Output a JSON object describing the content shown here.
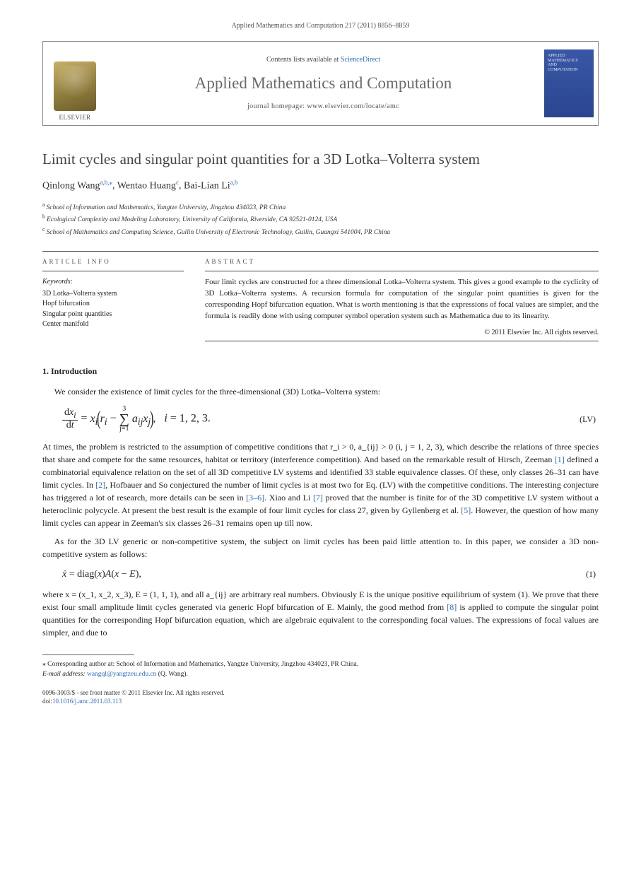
{
  "header_ref": "Applied Mathematics and Computation 217 (2011) 8856–8859",
  "masthead": {
    "contents_prefix": "Contents lists available at ",
    "contents_link": "ScienceDirect",
    "journal_title": "Applied Mathematics and Computation",
    "homepage_label": "journal homepage: www.elsevier.com/locate/amc",
    "publisher_label": "ELSEVIER",
    "cover_line1": "APPLIED",
    "cover_line2": "MATHEMATICS",
    "cover_line3": "AND",
    "cover_line4": "COMPUTATION"
  },
  "title": "Limit cycles and singular point quantities for a 3D Lotka–Volterra system",
  "authors": {
    "a1_name": "Qinlong Wang",
    "a1_sup": "a,b,",
    "a1_star": "⁎",
    "a2_name": ", Wentao Huang",
    "a2_sup": "c",
    "a3_name": ", Bai-Lian Li",
    "a3_sup": "a,b"
  },
  "affiliations": {
    "a": "School of Information and Mathematics, Yangtze University, Jingzhou 434023, PR China",
    "b": "Ecological Complexity and Modeling Laboratory, University of California, Riverside, CA 92521-0124, USA",
    "c": "School of Mathematics and Computing Science, Guilin University of Electronic Technology, Guilin, Guangxi 541004, PR China"
  },
  "article_info_head": "ARTICLE INFO",
  "abstract_head": "ABSTRACT",
  "keywords_label": "Keywords:",
  "keywords": [
    "3D Lotka–Volterra system",
    "Hopf bifurcation",
    "Singular point quantities",
    "Center manifold"
  ],
  "abstract_text": "Four limit cycles are constructed for a three dimensional Lotka–Volterra system. This gives a good example to the cyclicity of 3D Lotka–Volterra systems. A recursion formula for computation of the singular point quantities is given for the corresponding Hopf bifurcation equation. What is worth mentioning is that the expressions of focal values are simpler, and the formula is readily done with using computer symbol operation system such as Mathematica due to its linearity.",
  "copyright": "© 2011 Elsevier Inc. All rights reserved.",
  "section1_heading": "1. Introduction",
  "intro_p1": "We consider the existence of limit cycles for the three-dimensional (3D) Lotka–Volterra system:",
  "eqLV": {
    "lhs_num": "dx_i",
    "lhs_den": "dt",
    "eq": " = x_i",
    "inside_pre": "r_i − ",
    "sum_top": "3",
    "sum_bot": "j=1",
    "inside_post": " a_{ij} x_j",
    "tail": ",   i = 1, 2, 3.",
    "tag": "(LV)"
  },
  "intro_p2_a": "At times, the problem is restricted to the assumption of competitive conditions that r_i > 0, a_{ij} > 0 (i, j = 1, 2, 3), which describe the relations of three species that share and compete for the same resources, habitat or territory (interference competition). And based on the remarkable result of Hirsch, Zeeman ",
  "ref1": "[1]",
  "intro_p2_b": " defined a combinatorial equivalence relation on the set of all 3D competitive LV systems and identified 33 stable equivalence classes. Of these, only classes 26–31 can have limit cycles. In ",
  "ref2": "[2]",
  "intro_p2_c": ", Hofbauer and So conjectured the number of limit cycles is at most two for Eq. (LV) with the competitive conditions. The interesting conjecture has triggered a lot of research, more details can be seen in ",
  "ref36": "[3–6]",
  "intro_p2_d": ". Xiao and Li ",
  "ref7": "[7]",
  "intro_p2_e": " proved that the number is finite for of the 3D competitive LV system without a heteroclinic polycycle. At present the best result is the example of four limit cycles for class 27, given by Gyllenberg et al. ",
  "ref5": "[5]",
  "intro_p2_f": ". However, the question of how many limit cycles can appear in Zeeman's six classes 26–31 remains open up till now.",
  "intro_p3": "As for the 3D LV generic or non-competitive system, the subject on limit cycles has been paid little attention to. In this paper, we consider a 3D non-competitive system as follows:",
  "eq1": {
    "body": "ẋ = diag(x)A(x − E),",
    "tag": "(1)"
  },
  "intro_p4_a": "where x = (x_1, x_2, x_3), E = (1, 1, 1), and all a_{ij} are arbitrary real numbers. Obviously E is the unique positive equilibrium of system (1). We prove that there exist four small amplitude limit cycles generated via generic Hopf bifurcation of E. Mainly, the good method from ",
  "ref8": "[8]",
  "intro_p4_b": " is applied to compute the singular point quantities for the corresponding Hopf bifurcation equation, which are algebraic equivalent to the corresponding focal values. The expressions of focal values are simpler, and due to",
  "footnote": {
    "corr": "Corresponding author at: School of Information and Mathematics, Yangtze University, Jingzhou 434023, PR China.",
    "email_label": "E-mail address: ",
    "email": "wangql@yangtzeu.edu.cn",
    "email_tail": " (Q. Wang)."
  },
  "doi": {
    "line1": "0096-3003/$ - see front matter © 2011 Elsevier Inc. All rights reserved.",
    "line2_pre": "doi:",
    "line2_link": "10.1016/j.amc.2011.03.113"
  },
  "colors": {
    "link": "#2a6dc9",
    "title_gray": "#6a6a6a",
    "text": "#222222",
    "rule": "#444444",
    "cover_bg_top": "#3957a6",
    "cover_bg_bot": "#2a468f"
  }
}
